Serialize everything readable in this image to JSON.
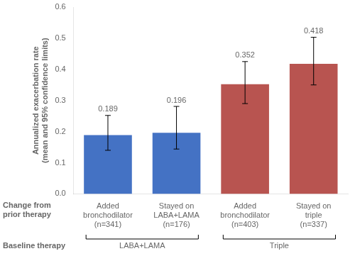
{
  "chart_data": {
    "type": "bar",
    "categories": [
      "Added\nbronchodilator\n(n=341)",
      "Stayed on\nLABA+LAMA\n(n=176)",
      "Added\nbronchodilator\n(n=403)",
      "Stayed on\ntriple\n(n=337)"
    ],
    "values": [
      0.189,
      0.196,
      0.352,
      0.418
    ],
    "err_lower": [
      0.049,
      0.052,
      0.062,
      0.068
    ],
    "err_upper": [
      0.063,
      0.085,
      0.073,
      0.085
    ],
    "colors": [
      "#4472C4",
      "#4472C4",
      "#B85450",
      "#B85450"
    ],
    "data_labels": true,
    "ylabel": "Annualized exacerbation rate\n(mean and 95% confidence limits)",
    "ylim": [
      0.0,
      0.6
    ],
    "yticks": [
      {
        "value": 0,
        "label": "0.0"
      },
      0.1,
      0.2,
      0.3,
      0.4,
      0.5,
      0.6
    ],
    "grid": false,
    "groups": [
      "LABA+LAMA",
      "LABA+LAMA",
      "Triple",
      "Triple"
    ],
    "category_title": "Change from\nprior therapy",
    "group_title": "Baseline therapy"
  }
}
